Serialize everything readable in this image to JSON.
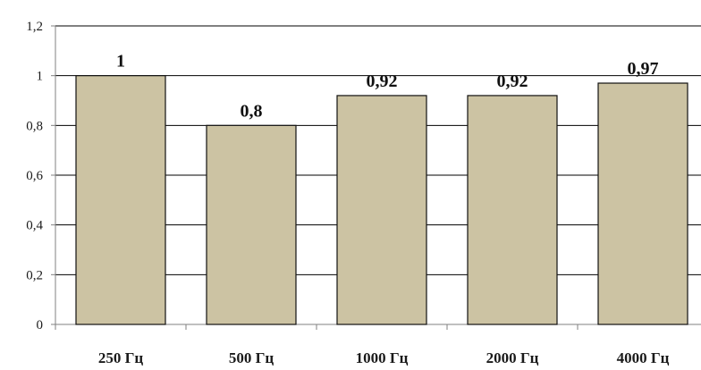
{
  "chart_data": {
    "type": "bar",
    "categories": [
      "250 Гц",
      "500 Гц",
      "1000 Гц",
      "2000 Гц",
      "4000 Гц"
    ],
    "values": [
      1,
      0.8,
      0.92,
      0.92,
      0.97
    ],
    "data_labels": [
      "1",
      "0,8",
      "0,92",
      "0,92",
      "0,97"
    ],
    "y_ticks": [
      "0",
      "0,2",
      "0,4",
      "0,6",
      "0,8",
      "1",
      "1,2"
    ],
    "y_tick_values": [
      0,
      0.2,
      0.4,
      0.6,
      0.8,
      1,
      1.2
    ],
    "ylim": [
      0,
      1.2
    ],
    "grid": true,
    "legend": "none",
    "colors": {
      "bar_fill": "#CCC3A3",
      "bar_stroke": "#111111",
      "grid": "#000000",
      "axis": "#808080",
      "background": "#ffffff"
    }
  }
}
